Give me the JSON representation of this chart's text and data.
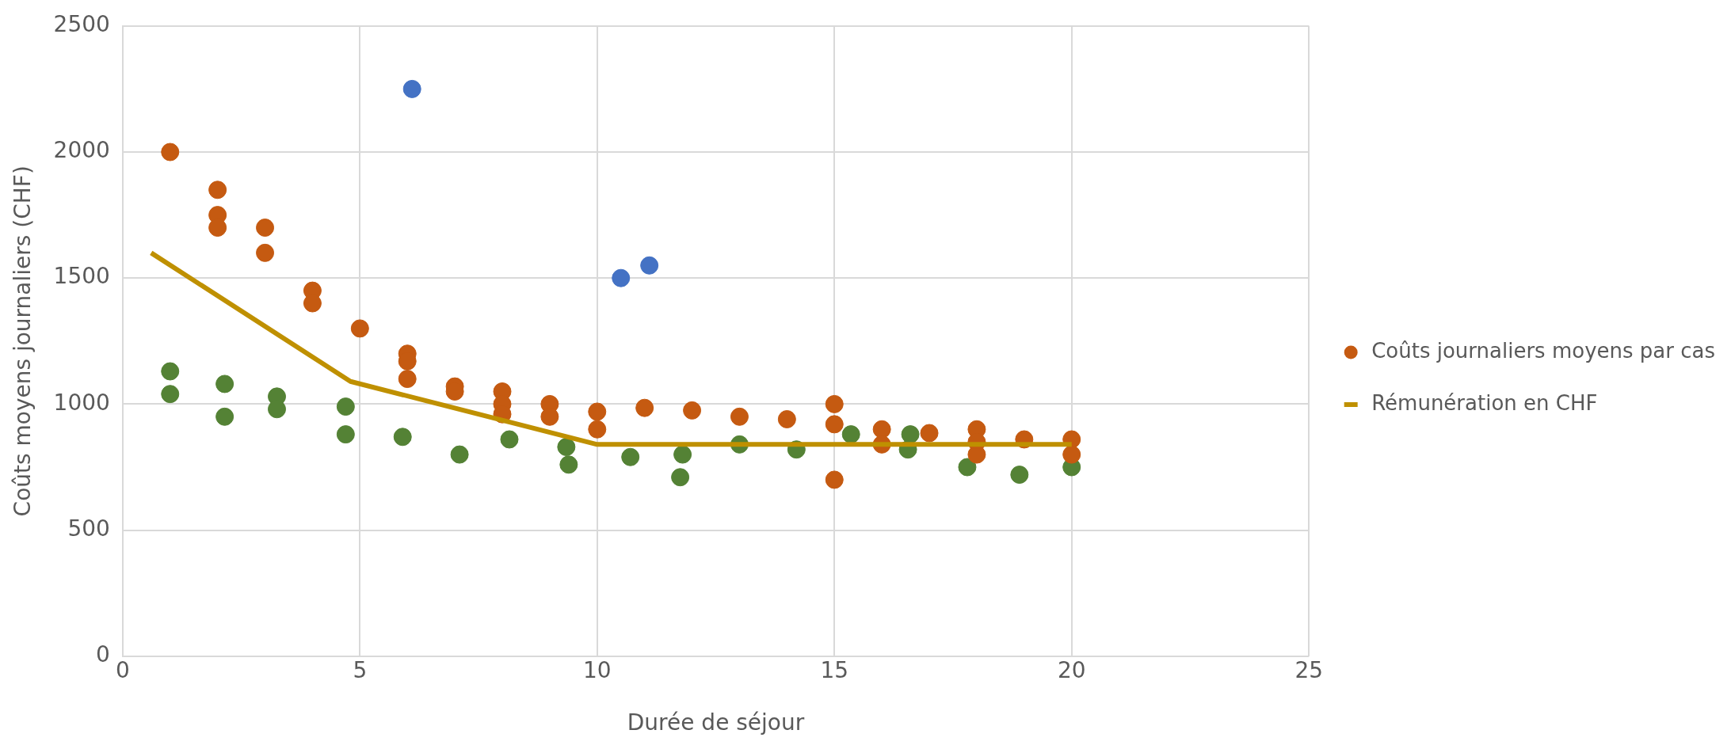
{
  "chart_data": {
    "type": "scatter",
    "xlabel": "Durée de séjour",
    "ylabel": "Coûts moyens journaliers (CHF)",
    "xlim": [
      0,
      25
    ],
    "xticks": [
      0,
      5,
      10,
      15,
      20,
      25
    ],
    "ylim": [
      0,
      2500
    ],
    "yticks": [
      0,
      500,
      1000,
      1500,
      2000,
      2500
    ],
    "grid": true,
    "legend": "right",
    "marker": "circle",
    "series": [
      {
        "name": "Coûts journaliers moyens par cas",
        "color": "#c55a11",
        "x": [
          1,
          2,
          2,
          2,
          3,
          3,
          4,
          4,
          5,
          6,
          6,
          6,
          7,
          7,
          8,
          8,
          8,
          9,
          9,
          10,
          10,
          11,
          12,
          13,
          14,
          15,
          15,
          15,
          16,
          16,
          17,
          18,
          18,
          18,
          19,
          20,
          20
        ],
        "values": [
          2000,
          1850,
          1750,
          1700,
          1700,
          1600,
          1450,
          1400,
          1300,
          1200,
          1170,
          1100,
          1070,
          1050,
          1050,
          1000,
          960,
          1000,
          950,
          970,
          900,
          985,
          975,
          950,
          940,
          1000,
          920,
          700,
          900,
          840,
          885,
          900,
          850,
          800,
          860,
          860,
          800
        ]
      },
      {
        "color": "#548235",
        "x": [
          1,
          1,
          2.15,
          2.15,
          3.25,
          3.25,
          4.7,
          4.7,
          5.9,
          7.1,
          8.15,
          9.35,
          9.4,
          10.7,
          11.8,
          11.75,
          13,
          14.2,
          15.35,
          16.6,
          16.55,
          17.8,
          18.9,
          20
        ],
        "values": [
          1130,
          1040,
          1080,
          950,
          1030,
          980,
          990,
          880,
          870,
          800,
          860,
          830,
          760,
          790,
          800,
          710,
          840,
          820,
          880,
          880,
          820,
          750,
          720,
          750
        ]
      },
      {
        "color": "#4472c4",
        "x": [
          6.1,
          10.5,
          11.1
        ],
        "values": [
          2250,
          1500,
          1550
        ]
      },
      {
        "name": "Rémunération en CHF",
        "type": "line",
        "marker": "none",
        "color": "#bf9000",
        "x": [
          0.6,
          4.8,
          10,
          20
        ],
        "values": [
          1600,
          1090,
          840,
          840
        ]
      }
    ]
  }
}
